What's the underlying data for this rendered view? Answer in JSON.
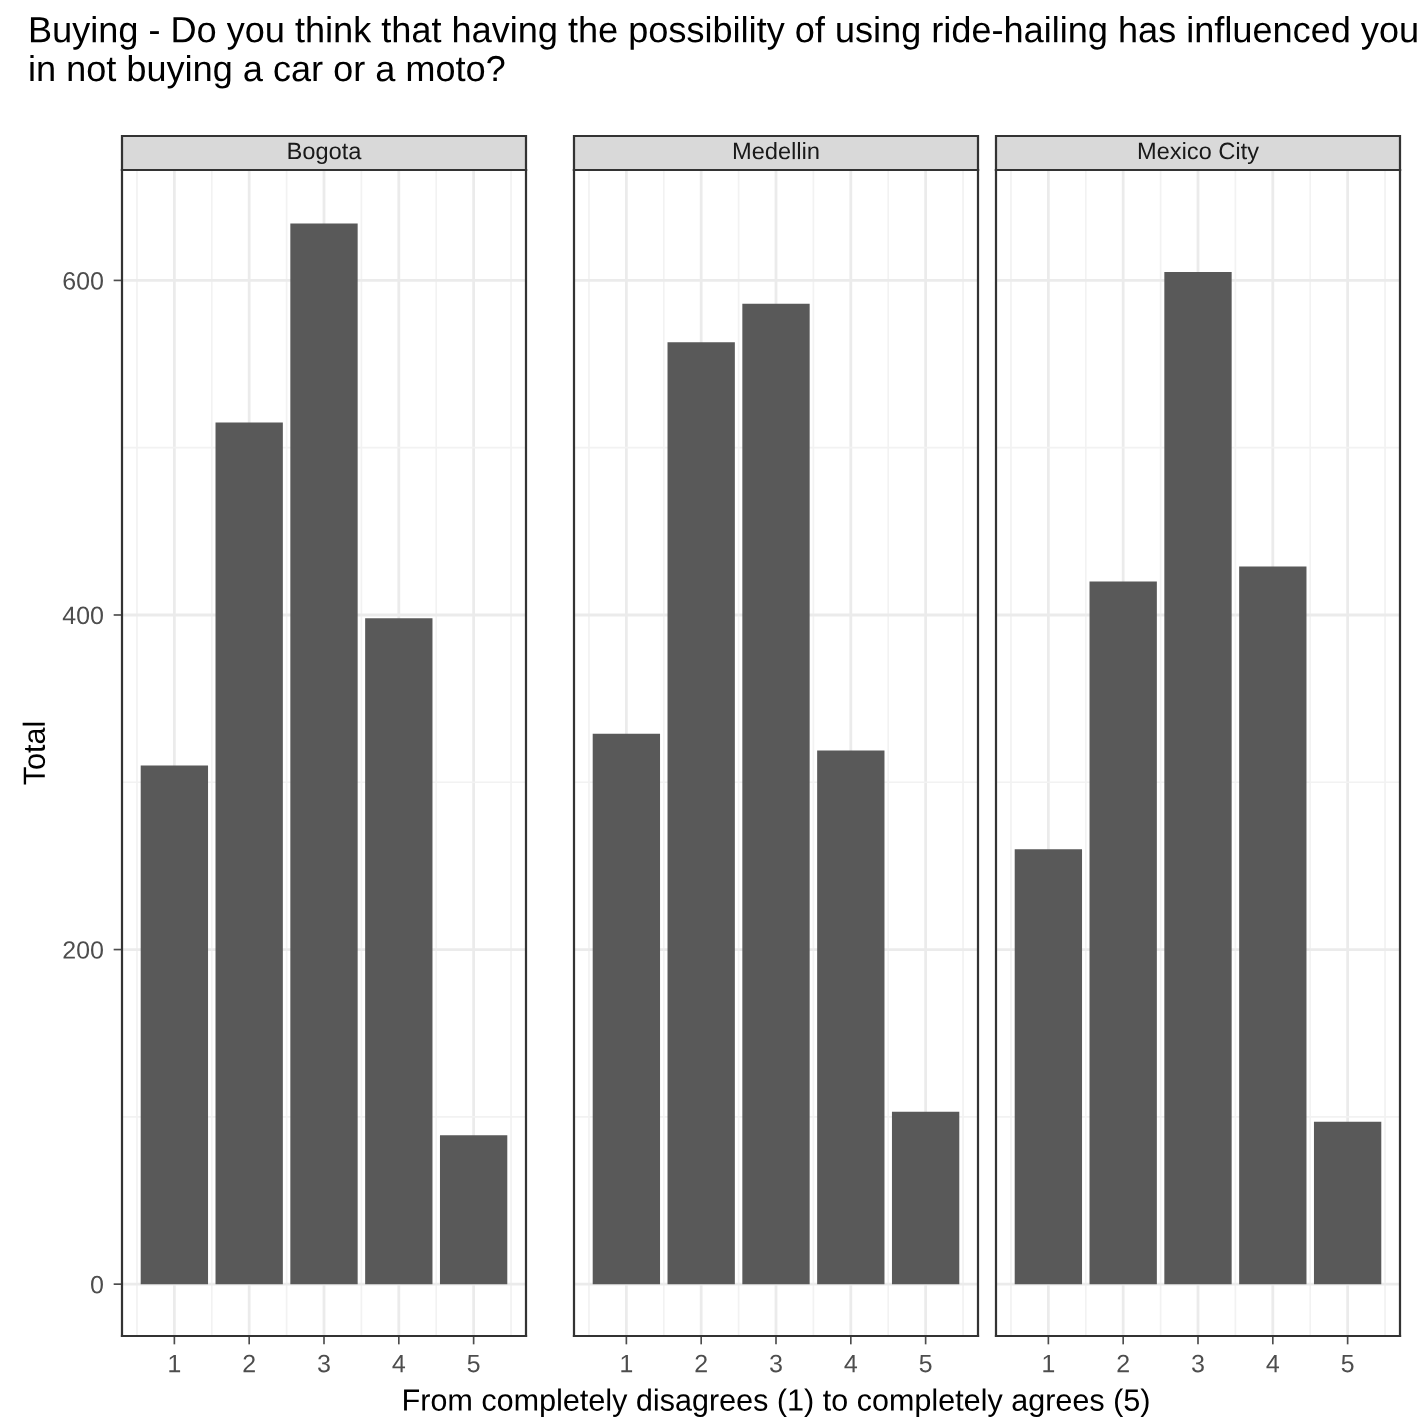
{
  "chart_data": [
    {
      "type": "bar",
      "title": "Bogota",
      "ylabel": "Total",
      "annotations": [
        "Buying - Do you think that having the possibility of using ride-hailing has influenced you in not buying a car or a moto?"
      ],
      "x": [
        1,
        2,
        3,
        4,
        5
      ],
      "values": [
        310,
        515,
        634,
        398,
        89
      ],
      "color": "#595959",
      "xlim": [
        0.3,
        5.7
      ],
      "xticks": [
        1,
        2,
        3,
        4,
        5
      ],
      "ylim": [
        -31,
        666
      ],
      "yticks": [
        0,
        200,
        400,
        600
      ],
      "grid": true
    },
    {
      "type": "bar",
      "title": "Medellin",
      "xlabel": "From completely disagrees (1) to completely agrees (5)",
      "x": [
        1,
        2,
        3,
        4,
        5
      ],
      "values": [
        329,
        563,
        586,
        319,
        103
      ],
      "color": "#595959",
      "xlim": [
        0.3,
        5.7
      ],
      "xticks": [
        1,
        2,
        3,
        4,
        5
      ],
      "ylim": [
        -31,
        666
      ],
      "yticks": [
        0,
        200,
        400,
        600
      ],
      "grid": true,
      "tick_labels": "x"
    },
    {
      "type": "bar",
      "title": "Mexico City",
      "x": [
        1,
        2,
        3,
        4,
        5
      ],
      "values": [
        260,
        420,
        605,
        429,
        97
      ],
      "color": "#595959",
      "xlim": [
        0.3,
        5.7
      ],
      "xticks": [
        1,
        2,
        3,
        4,
        5
      ],
      "ylim": [
        -31,
        666
      ],
      "yticks": [
        0,
        200,
        400,
        600
      ],
      "grid": true,
      "tick_labels": "x"
    }
  ]
}
